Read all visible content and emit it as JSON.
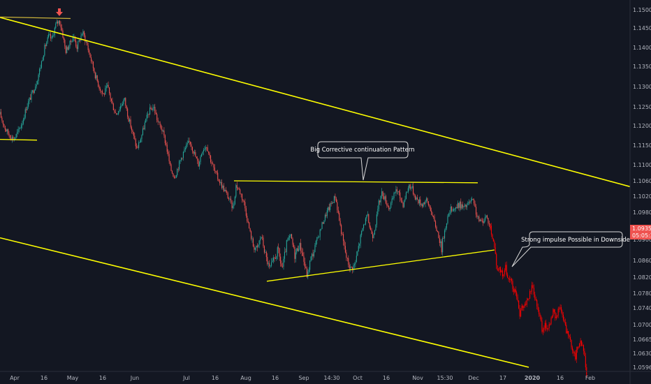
{
  "chart_data": {
    "type": "candlestick",
    "title": "",
    "symbol": "",
    "x_ticks": [
      {
        "label": "Apr",
        "bold": false
      },
      {
        "label": "16",
        "bold": false
      },
      {
        "label": "May",
        "bold": false
      },
      {
        "label": "16",
        "bold": false
      },
      {
        "label": "Jun",
        "bold": false
      },
      {
        "label": "Jul",
        "bold": false
      },
      {
        "label": "16",
        "bold": false
      },
      {
        "label": "Aug",
        "bold": false
      },
      {
        "label": "16",
        "bold": false
      },
      {
        "label": "Sep",
        "bold": false
      },
      {
        "label": "14:30",
        "bold": false
      },
      {
        "label": "Oct",
        "bold": false
      },
      {
        "label": "16",
        "bold": false
      },
      {
        "label": "Nov",
        "bold": false
      },
      {
        "label": "15:30",
        "bold": false
      },
      {
        "label": "Dec",
        "bold": false
      },
      {
        "label": "17",
        "bold": false
      },
      {
        "label": "2020",
        "bold": true
      },
      {
        "label": "16",
        "bold": false
      },
      {
        "label": "Feb",
        "bold": false
      }
    ],
    "y_ticks": [
      "1.15000",
      "1.14500",
      "1.14000",
      "1.13500",
      "1.13000",
      "1.12500",
      "1.12000",
      "1.11500",
      "1.11000",
      "1.10600",
      "1.10200",
      "1.09800",
      "1.09000",
      "1.08600",
      "1.08200",
      "1.07800",
      "1.07400",
      "1.07000",
      "1.06650",
      "1.06300",
      "1.05960"
    ],
    "current_price": "1.09356",
    "countdown": "05:05:32",
    "colors": {
      "background": "#131722",
      "up": "#26a69a",
      "down": "#ef5350",
      "projection": "#ff0000",
      "trendline": "#ffff00",
      "price_tag": "#ef5350",
      "axis_text": "#b2b5be"
    },
    "series": [
      {
        "name": "",
        "kind": "candles",
        "path": [
          [
            1.123,
            0
          ],
          [
            1.121,
            4
          ],
          [
            1.119,
            8
          ],
          [
            1.1175,
            14
          ],
          [
            1.1165,
            20
          ],
          [
            1.1185,
            26
          ],
          [
            1.121,
            32
          ],
          [
            1.125,
            38
          ],
          [
            1.128,
            45
          ],
          [
            1.131,
            52
          ],
          [
            1.135,
            58
          ],
          [
            1.14,
            64
          ],
          [
            1.143,
            70
          ],
          [
            1.142,
            74
          ],
          [
            1.146,
            80
          ],
          [
            1.147,
            85
          ],
          [
            1.144,
            89
          ],
          [
            1.139,
            94
          ],
          [
            1.141,
            100
          ],
          [
            1.143,
            105
          ],
          [
            1.14,
            110
          ],
          [
            1.142,
            114
          ],
          [
            1.144,
            118
          ],
          [
            1.141,
            124
          ],
          [
            1.137,
            130
          ],
          [
            1.133,
            136
          ],
          [
            1.13,
            142
          ],
          [
            1.128,
            148
          ],
          [
            1.13,
            154
          ],
          [
            1.126,
            160
          ],
          [
            1.123,
            166
          ],
          [
            1.125,
            172
          ],
          [
            1.127,
            178
          ],
          [
            1.122,
            184
          ],
          [
            1.118,
            190
          ],
          [
            1.114,
            196
          ],
          [
            1.117,
            202
          ],
          [
            1.121,
            208
          ],
          [
            1.124,
            214
          ],
          [
            1.125,
            220
          ],
          [
            1.121,
            226
          ],
          [
            1.119,
            232
          ],
          [
            1.115,
            238
          ],
          [
            1.109,
            244
          ],
          [
            1.107,
            250
          ],
          [
            1.11,
            256
          ],
          [
            1.113,
            262
          ],
          [
            1.115,
            268
          ],
          [
            1.116,
            272
          ],
          [
            1.113,
            278
          ],
          [
            1.11,
            284
          ],
          [
            1.114,
            290
          ],
          [
            1.115,
            296
          ],
          [
            1.111,
            302
          ],
          [
            1.108,
            308
          ],
          [
            1.106,
            314
          ],
          [
            1.104,
            320
          ],
          [
            1.102,
            326
          ],
          [
            1.1,
            331
          ],
          [
            1.099,
            334
          ],
          [
            1.105,
            338
          ],
          [
            1.103,
            344
          ],
          [
            1.1,
            350
          ],
          [
            1.096,
            354
          ],
          [
            1.092,
            358
          ],
          [
            1.089,
            362
          ],
          [
            1.088,
            368
          ],
          [
            1.091,
            374
          ],
          [
            1.087,
            380
          ],
          [
            1.084,
            386
          ],
          [
            1.086,
            392
          ],
          [
            1.088,
            398
          ],
          [
            1.084,
            404
          ],
          [
            1.089,
            410
          ],
          [
            1.091,
            416
          ],
          [
            1.087,
            422
          ],
          [
            1.089,
            428
          ],
          [
            1.088,
            432
          ],
          [
            1.085,
            436
          ],
          [
            1.082,
            440
          ],
          [
            1.086,
            444
          ],
          [
            1.088,
            450
          ],
          [
            1.091,
            456
          ],
          [
            1.095,
            462
          ],
          [
            1.098,
            468
          ],
          [
            1.1,
            474
          ],
          [
            1.102,
            480
          ],
          [
            1.098,
            484
          ],
          [
            1.093,
            488
          ],
          [
            1.089,
            492
          ],
          [
            1.086,
            497
          ],
          [
            1.084,
            502
          ],
          [
            1.085,
            508
          ],
          [
            1.089,
            514
          ],
          [
            1.094,
            520
          ],
          [
            1.097,
            526
          ],
          [
            1.093,
            530
          ],
          [
            1.091,
            534
          ],
          [
            1.095,
            538
          ],
          [
            1.1,
            542
          ],
          [
            1.103,
            547
          ],
          [
            1.101,
            552
          ],
          [
            1.099,
            557
          ],
          [
            1.101,
            562
          ],
          [
            1.104,
            567
          ],
          [
            1.102,
            572
          ],
          [
            1.1,
            577
          ],
          [
            1.103,
            582
          ],
          [
            1.105,
            586
          ],
          [
            1.104,
            590
          ],
          [
            1.102,
            594
          ],
          [
            1.101,
            598
          ],
          [
            1.1,
            604
          ],
          [
            1.101,
            610
          ],
          [
            1.099,
            616
          ],
          [
            1.095,
            622
          ],
          [
            1.091,
            628
          ],
          [
            1.088,
            632
          ],
          [
            1.092,
            636
          ],
          [
            1.096,
            640
          ],
          [
            1.099,
            646
          ],
          [
            1.099,
            652
          ],
          [
            1.1,
            658
          ],
          [
            1.099,
            664
          ],
          [
            1.1,
            670
          ],
          [
            1.101,
            676
          ],
          [
            1.099,
            680
          ],
          [
            1.096,
            684
          ],
          [
            1.095,
            690
          ],
          [
            1.097,
            696
          ],
          [
            1.0935,
            702
          ]
        ]
      },
      {
        "name": "",
        "kind": "projection",
        "path": [
          [
            1.0935,
            702
          ],
          [
            1.09,
            705
          ],
          [
            1.087,
            709
          ],
          [
            1.083,
            713
          ],
          [
            1.084,
            716
          ],
          [
            1.082,
            720
          ],
          [
            1.085,
            723
          ],
          [
            1.081,
            727
          ],
          [
            1.082,
            731
          ],
          [
            1.078,
            735
          ],
          [
            1.079,
            738
          ],
          [
            1.076,
            741
          ],
          [
            1.072,
            744
          ],
          [
            1.074,
            747
          ],
          [
            1.075,
            751
          ],
          [
            1.076,
            755
          ],
          [
            1.078,
            759
          ],
          [
            1.08,
            762
          ],
          [
            1.077,
            766
          ],
          [
            1.074,
            770
          ],
          [
            1.071,
            774
          ],
          [
            1.068,
            777
          ],
          [
            1.07,
            781
          ],
          [
            1.069,
            784
          ],
          [
            1.071,
            788
          ],
          [
            1.073,
            792
          ],
          [
            1.072,
            796
          ],
          [
            1.074,
            800
          ],
          [
            1.073,
            804
          ],
          [
            1.07,
            808
          ],
          [
            1.068,
            812
          ],
          [
            1.066,
            816
          ],
          [
            1.064,
            820
          ],
          [
            1.062,
            824
          ],
          [
            1.065,
            827
          ],
          [
            1.066,
            831
          ],
          [
            1.064,
            835
          ],
          [
            1.06,
            838
          ],
          [
            1.056,
            841
          ]
        ]
      }
    ],
    "annotations": [
      {
        "text": "Big Corrective continuation Pattern"
      },
      {
        "text": "Strong impulse Possible in Downside"
      }
    ],
    "trendlines": [
      {
        "from": [
          0,
          1.1479
        ],
        "to": [
          902,
          1.1045
        ]
      },
      {
        "from": [
          0,
          1.0905
        ],
        "to": [
          757,
          1.0596
        ]
      },
      {
        "from": [
          0,
          1.148
        ],
        "to": [
          101,
          1.1476
        ]
      },
      {
        "from": [
          0,
          1.1165
        ],
        "to": [
          53,
          1.1163
        ]
      },
      {
        "from": [
          335,
          1.106
        ],
        "to": [
          684,
          1.1055
        ]
      },
      {
        "from": [
          382,
          1.081
        ],
        "to": [
          708,
          1.088
        ]
      }
    ],
    "xlabel": "",
    "ylabel": "",
    "grid": false,
    "y_scale": "linear"
  }
}
